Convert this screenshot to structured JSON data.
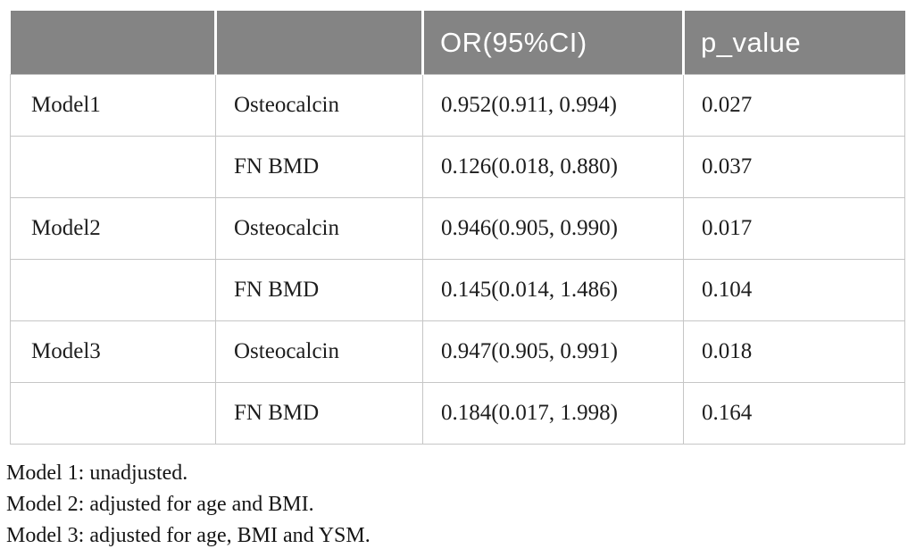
{
  "table": {
    "header": {
      "col1": "",
      "col2": "",
      "col3": "OR(95%CI)",
      "col4": "p_value"
    },
    "rows": [
      {
        "model": "Model1",
        "variable": "Osteocalcin",
        "or_ci": "0.952(0.911, 0.994)",
        "p_value": "0.027"
      },
      {
        "model": "",
        "variable": "FN BMD",
        "or_ci": "0.126(0.018, 0.880)",
        "p_value": "0.037"
      },
      {
        "model": "Model2",
        "variable": "Osteocalcin",
        "or_ci": "0.946(0.905, 0.990)",
        "p_value": "0.017"
      },
      {
        "model": "",
        "variable": "FN BMD",
        "or_ci": "0.145(0.014, 1.486)",
        "p_value": "0.104"
      },
      {
        "model": "Model3",
        "variable": "Osteocalcin",
        "or_ci": "0.947(0.905, 0.991)",
        "p_value": "0.018"
      },
      {
        "model": "",
        "variable": "FN BMD",
        "or_ci": "0.184(0.017, 1.998)",
        "p_value": "0.164"
      }
    ]
  },
  "footnotes": [
    "Model 1: unadjusted.",
    "Model 2: adjusted for age and BMI.",
    "Model 3: adjusted for age, BMI and YSM."
  ],
  "colors": {
    "header_bg": "#848484",
    "header_text": "#ffffff",
    "body_text": "#1d1d1d",
    "border": "#c6c6c6"
  }
}
